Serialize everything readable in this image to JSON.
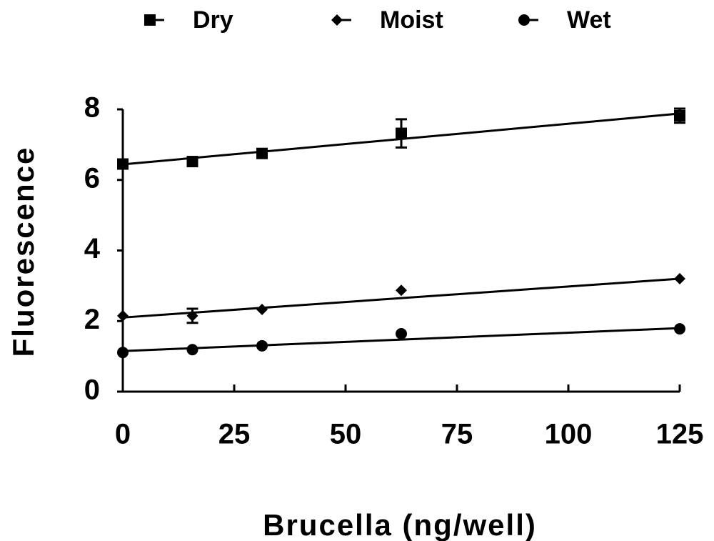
{
  "chart_data": {
    "type": "scatter",
    "x_label": "Brucella (ng/well)",
    "y_label": "Fluorescence",
    "x": [
      0,
      15.625,
      31.25,
      62.5,
      125
    ],
    "series": [
      {
        "name": "Dry",
        "color": "#000000",
        "marker": "square",
        "values": [
          6.45,
          6.52,
          6.75,
          7.32,
          7.82
        ],
        "errors": [
          null,
          null,
          null,
          0.4,
          0.2
        ],
        "fit": [
          6.44,
          7.88
        ]
      },
      {
        "name": "Moist",
        "color": "#000000",
        "marker": "diamond",
        "values": [
          2.15,
          2.15,
          2.33,
          2.87,
          3.2
        ],
        "errors": [
          null,
          0.2,
          null,
          null,
          null
        ],
        "fit": [
          2.1,
          3.2
        ]
      },
      {
        "name": "Wet",
        "color": "#000000",
        "marker": "circle",
        "values": [
          1.11,
          1.19,
          1.3,
          1.64,
          1.78
        ],
        "errors": [
          null,
          null,
          null,
          null,
          null
        ],
        "fit": [
          1.15,
          1.8
        ]
      }
    ],
    "xlim": [
      0,
      125
    ],
    "xticks": [
      0,
      25,
      50,
      75,
      100,
      125
    ],
    "ylim": [
      0,
      8
    ],
    "yticks": [
      0,
      2,
      4,
      6,
      8
    ],
    "grid": false,
    "legend": "top"
  }
}
